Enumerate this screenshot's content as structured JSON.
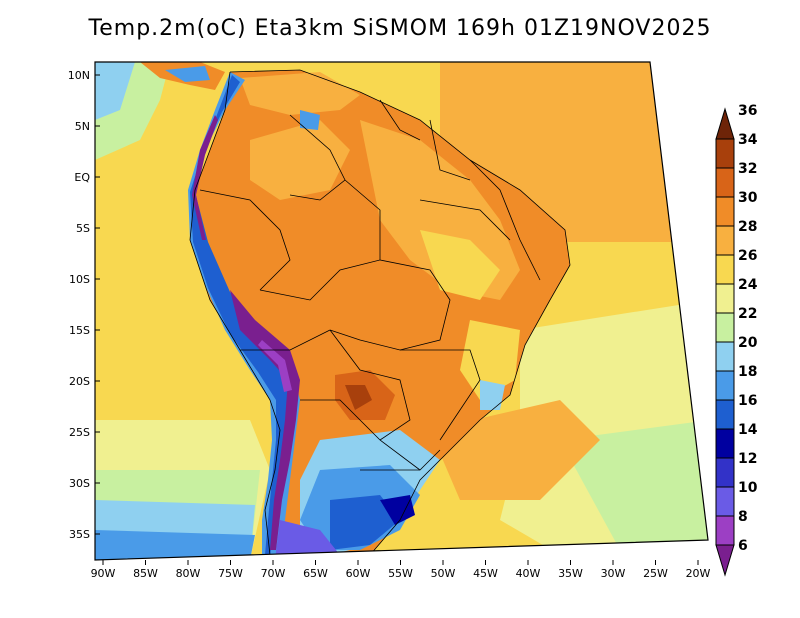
{
  "title": "Temp.2m(oC) Eta3km SiSMOM 169h 01Z19NOV2025",
  "map": {
    "variable": "2 m temperature",
    "units": "oC",
    "model": "Eta3km SiSMOM",
    "forecast_hour": "169h",
    "valid_time": "01Z19NOV2025",
    "lon_ticks": [
      "90W",
      "85W",
      "80W",
      "75W",
      "70W",
      "65W",
      "60W",
      "55W",
      "50W",
      "45W",
      "40W",
      "35W",
      "30W",
      "25W",
      "20W"
    ],
    "lat_ticks": [
      "10N",
      "5N",
      "EQ",
      "5S",
      "10S",
      "15S",
      "20S",
      "25S",
      "30S",
      "35S"
    ]
  },
  "colorbar": {
    "labels": [
      "6",
      "8",
      "10",
      "12",
      "14",
      "16",
      "18",
      "20",
      "22",
      "24",
      "26",
      "28",
      "30",
      "32",
      "34",
      "36"
    ],
    "colors": [
      "#7a1f8f",
      "#9c3fc4",
      "#6a5be6",
      "#3232c8",
      "#0000a0",
      "#1e5fd0",
      "#4a9be8",
      "#8fd0f0",
      "#c8f0a0",
      "#f0f090",
      "#f8d850",
      "#f8b040",
      "#f08c28",
      "#d86418",
      "#a8400c",
      "#6e2408"
    ]
  }
}
